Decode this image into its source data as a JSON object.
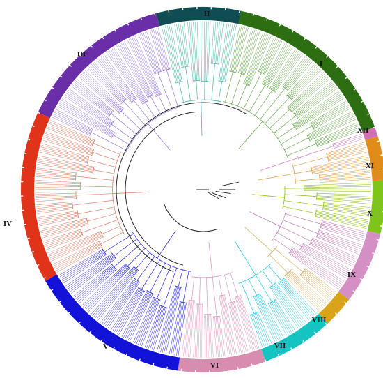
{
  "figure": {
    "type": "circular-phylogenetic-tree",
    "background": "#ffffff",
    "trunk_color": "#222222",
    "tick_color": "#ffffff"
  },
  "clades": [
    {
      "name": "I",
      "color": "#2d6e12",
      "branch_color": "#6aa84f"
    },
    {
      "name": "II",
      "color": "#0f4d52",
      "branch_color": "#4fb3a8"
    },
    {
      "name": "III",
      "color": "#6a2fa8",
      "branch_color": "#9a78d6"
    },
    {
      "name": "IV",
      "color": "#e0341a",
      "branch_color": "#d9826a"
    },
    {
      "name": "V",
      "color": "#1212d8",
      "branch_color": "#2a2ad8"
    },
    {
      "name": "VI",
      "color": "#d88cb0",
      "branch_color": "#d99ac0"
    },
    {
      "name": "VII",
      "color": "#13c4c0",
      "branch_color": "#22c6e6"
    },
    {
      "name": "VIII",
      "color": "#d9a41a",
      "branch_color": "#d9b060"
    },
    {
      "name": "IX",
      "color": "#d490c4",
      "branch_color": "#c47ab8"
    },
    {
      "name": "X",
      "color": "#7fc41a",
      "branch_color": "#8bbd12"
    },
    {
      "name": "XI",
      "color": "#e08c1a",
      "branch_color": "#e0a050"
    },
    {
      "name": "XII",
      "color": "#d070b0",
      "branch_color": "#d080c0"
    }
  ]
}
